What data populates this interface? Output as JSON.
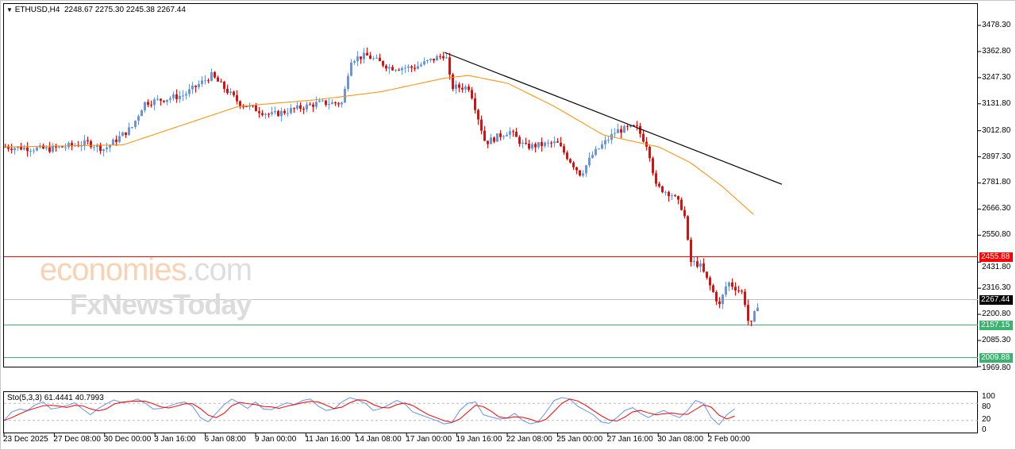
{
  "header": {
    "symbol": "ETHUSD,H4",
    "open": "2248.67",
    "high": "2275.30",
    "low": "2245.38",
    "close": "2267.44"
  },
  "watermark": {
    "line1": "economies",
    "line1_suffix": ".com",
    "line2": "FxNewsToday"
  },
  "price_axis": [
    "3478.30",
    "3362.80",
    "3247.30",
    "3131.80",
    "3012.80",
    "2897.30",
    "2781.80",
    "2666.30",
    "2550.80",
    "2431.80",
    "2316.30",
    "2200.80",
    "2085.30",
    "1969.80"
  ],
  "levels": [
    {
      "label": "2455.88",
      "price": 2455.88,
      "color": "#ff0000"
    },
    {
      "label": "2267.44",
      "price": 2267.44,
      "color": "#c0c0c0",
      "tag": "#000000"
    },
    {
      "label": "2157.15",
      "price": 2157.15,
      "color": "#3cb371"
    },
    {
      "label": "2009.88",
      "price": 2009.88,
      "color": "#3cb371"
    }
  ],
  "time_axis": [
    "23 Dec 2025",
    "27 Dec 08:00",
    "30 Dec 00:00",
    "3 Jan 16:00",
    "6 Jan 08:00",
    "9 Jan 00:00",
    "11 Jan 16:00",
    "14 Jan 08:00",
    "17 Jan 00:00",
    "19 Jan 16:00",
    "22 Jan 08:00",
    "25 Jan 00:00",
    "27 Jan 16:00",
    "30 Jan 08:00",
    "2 Feb 00:00"
  ],
  "stochastic": {
    "label": "Sto(5,3,3) 61.4441 40.7993",
    "axis": [
      "100",
      "80",
      "20",
      "0"
    ],
    "k": [
      20,
      50,
      60,
      55,
      75,
      85,
      60,
      65,
      72,
      82,
      60,
      40,
      62,
      78,
      92,
      82,
      86,
      95,
      80,
      60,
      62,
      70,
      80,
      85,
      70,
      30,
      15,
      45,
      75,
      95,
      80,
      62,
      85,
      60,
      58,
      70,
      82,
      75,
      90,
      95,
      70,
      55,
      60,
      85,
      100,
      92,
      80,
      55,
      62,
      75,
      90,
      78,
      50,
      40,
      30,
      20,
      8,
      12,
      55,
      80,
      85,
      40,
      32,
      25,
      28,
      45,
      20,
      8,
      15,
      50,
      90,
      100,
      95,
      70,
      55,
      40,
      15,
      10,
      30,
      55,
      65,
      45,
      30,
      45,
      55,
      40,
      30,
      55,
      90,
      80,
      30,
      5,
      40,
      61
    ]
  },
  "colors": {
    "bull": "#6495ed",
    "bear": "#ff0000",
    "ma": "#ff8c00",
    "trend": "#000000",
    "k": "#6495ed",
    "d": "#ff0000"
  },
  "chart_data": {
    "type": "candlestick",
    "price_anchors": [
      [
        0,
        2941
      ],
      [
        55,
        2931
      ],
      [
        105,
        2959
      ],
      [
        125,
        2931
      ],
      [
        160,
        3029
      ],
      [
        175,
        3135
      ],
      [
        225,
        3170
      ],
      [
        260,
        3257
      ],
      [
        295,
        3135
      ],
      [
        335,
        3082
      ],
      [
        395,
        3135
      ],
      [
        425,
        3135
      ],
      [
        435,
        3328
      ],
      [
        455,
        3345
      ],
      [
        485,
        3292
      ],
      [
        515,
        3292
      ],
      [
        555,
        3352
      ],
      [
        562,
        3205
      ],
      [
        585,
        3205
      ],
      [
        605,
        2959
      ],
      [
        635,
        3012
      ],
      [
        655,
        2941
      ],
      [
        695,
        2959
      ],
      [
        725,
        2819
      ],
      [
        740,
        2906
      ],
      [
        770,
        3012
      ],
      [
        795,
        3029
      ],
      [
        810,
        2941
      ],
      [
        820,
        2766
      ],
      [
        840,
        2731
      ],
      [
        855,
        2661
      ],
      [
        863,
        2433
      ],
      [
        875,
        2420
      ],
      [
        900,
        2240
      ],
      [
        910,
        2345
      ],
      [
        930,
        2292
      ],
      [
        938,
        2134
      ],
      [
        950,
        2267
      ]
    ],
    "ma_anchors": [
      [
        0,
        2941
      ],
      [
        150,
        2950
      ],
      [
        295,
        3120
      ],
      [
        395,
        3150
      ],
      [
        475,
        3185
      ],
      [
        555,
        3245
      ],
      [
        585,
        3257
      ],
      [
        635,
        3222
      ],
      [
        695,
        3117
      ],
      [
        755,
        2994
      ],
      [
        825,
        2941
      ],
      [
        865,
        2871
      ],
      [
        905,
        2766
      ],
      [
        947,
        2634
      ]
    ],
    "trendline": [
      [
        555,
        3359
      ],
      [
        980,
        2776
      ]
    ]
  }
}
